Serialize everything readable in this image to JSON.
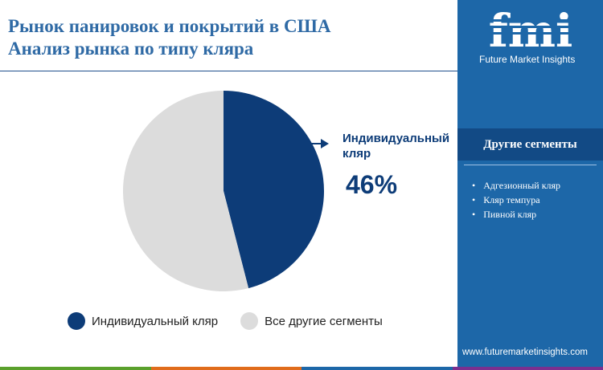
{
  "title": {
    "line1": "Рынок панировок и покрытий в США",
    "line2": "Анализ рынка по типу кляра"
  },
  "chart_data": {
    "type": "pie",
    "slices": [
      {
        "label": "Индивидуальный кляр",
        "value": 46,
        "color": "#0d3c78"
      },
      {
        "label": "Все другие сегменты",
        "value": 54,
        "color": "#dcdcdc"
      }
    ]
  },
  "callout": {
    "label": "Индивидуальный кляр",
    "value": "46%"
  },
  "legend": [
    {
      "label": "Индивидуальный кляр",
      "color": "#0d3c78"
    },
    {
      "label": "Все другие сегменты",
      "color": "#dcdcdc"
    }
  ],
  "sidebar": {
    "logo_letters": "fmi",
    "brand": "Future Market Insights",
    "segments_title": "Другие сегменты",
    "segments": [
      "Адгезионный кляр",
      "Кляр темпура",
      "Пивной кляр"
    ],
    "website": "www.futuremarketinsights.com"
  },
  "colors": {
    "title": "#2f6aa5",
    "sidebar": "#1d67a8",
    "sidebar_header": "#124a85",
    "accent_dark": "#0d3c78",
    "bottom_bar": [
      "#5aa02c",
      "#e06c1c",
      "#1d67a8",
      "#7b2f8f"
    ]
  }
}
